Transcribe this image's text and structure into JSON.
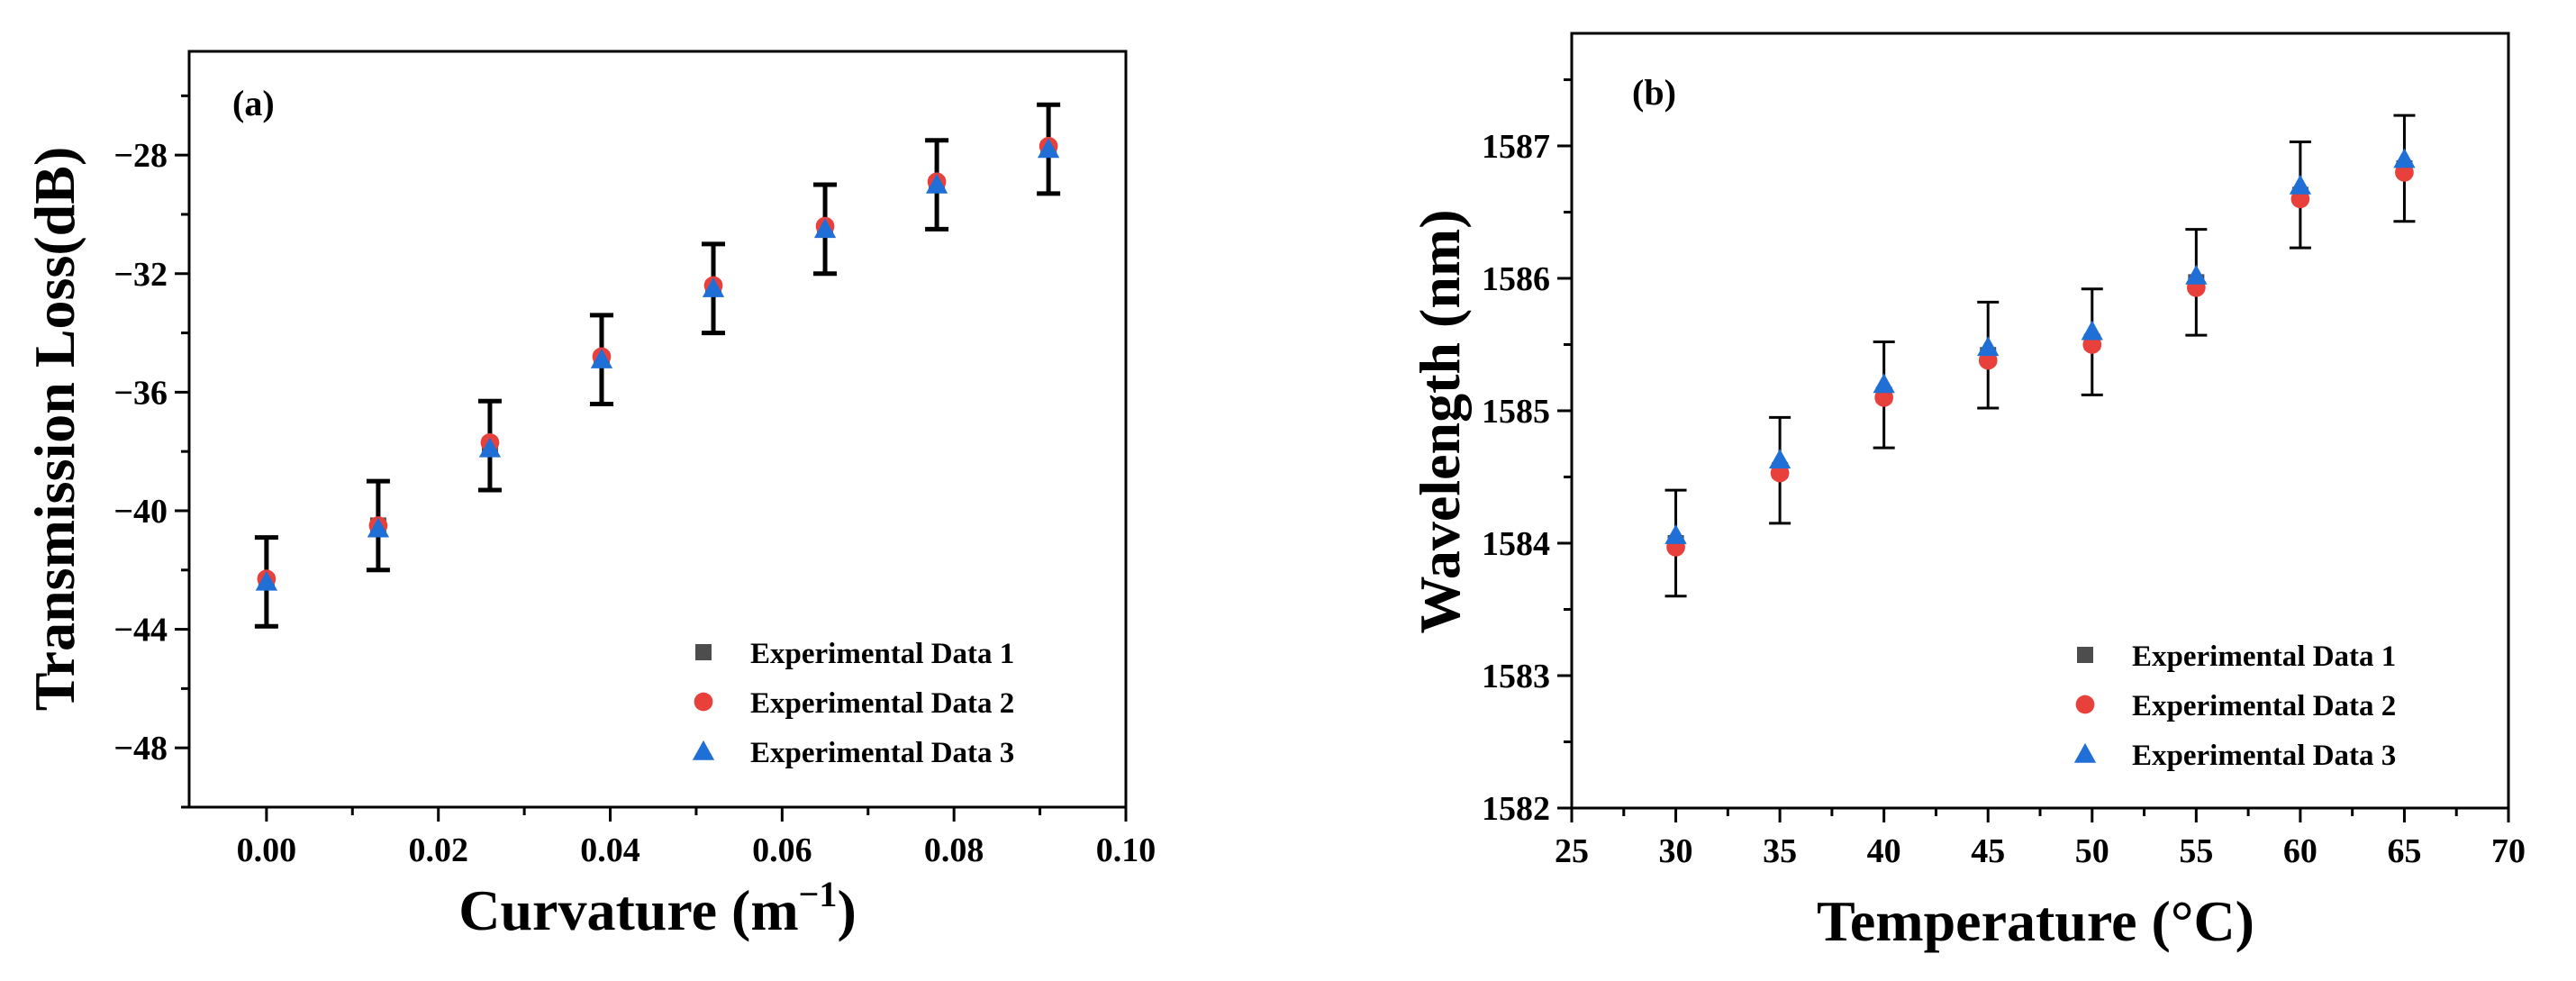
{
  "chart_data": [
    {
      "type": "scatter",
      "panel_label": "(a)",
      "xlabel_main": "Curvature (m",
      "xlabel_sup": "−1",
      "xlabel_close": ")",
      "ylabel": "Transmission Loss(dB)",
      "xlim": [
        -0.009,
        0.1
      ],
      "ylim": [
        -50,
        -24.5
      ],
      "xticks": [
        0.0,
        0.02,
        0.04,
        0.06,
        0.08,
        0.1
      ],
      "xtick_labels": [
        "0.00",
        "0.02",
        "0.04",
        "0.06",
        "0.08",
        "0.10"
      ],
      "yticks": [
        -48,
        -44,
        -40,
        -36,
        -32,
        -28
      ],
      "ytick_labels": [
        "−48",
        "−44",
        "−40",
        "−36",
        "−32",
        "−28"
      ],
      "x": [
        0.0,
        0.013,
        0.026,
        0.039,
        0.052,
        0.065,
        0.078,
        0.091
      ],
      "errors": [
        1.5,
        1.5,
        1.5,
        1.5,
        1.5,
        1.5,
        1.5,
        1.5
      ],
      "series": [
        {
          "name": "Experimental Data 1",
          "marker": "square",
          "color": "#4d4d4d",
          "values": [
            -42.4,
            -40.5,
            -37.8,
            -34.9,
            -32.5,
            -30.5,
            -29.0,
            -27.8
          ]
        },
        {
          "name": "Experimental Data 2",
          "marker": "circle",
          "color": "#e8413c",
          "values": [
            -42.3,
            -40.5,
            -37.7,
            -34.8,
            -32.4,
            -30.4,
            -28.9,
            -27.7
          ]
        },
        {
          "name": "Experimental Data 3",
          "marker": "triangle",
          "color": "#1f6fd6",
          "values": [
            -42.4,
            -40.6,
            -37.9,
            -34.9,
            -32.5,
            -30.5,
            -29.0,
            -27.8
          ]
        }
      ],
      "legend_position": "bottom-right"
    },
    {
      "type": "scatter",
      "panel_label": "(b)",
      "xlabel": "Temperature (°C)",
      "ylabel": "Wavelength (nm)",
      "xlim": [
        25,
        70
      ],
      "ylim": [
        1582,
        1587.85
      ],
      "xticks": [
        25,
        30,
        35,
        40,
        45,
        50,
        55,
        60,
        65,
        70
      ],
      "xtick_labels": [
        "25",
        "30",
        "35",
        "40",
        "45",
        "50",
        "55",
        "60",
        "65",
        "70"
      ],
      "yticks": [
        1582,
        1583,
        1584,
        1585,
        1586,
        1587
      ],
      "ytick_labels": [
        "1582",
        "1583",
        "1584",
        "1585",
        "1586",
        "1587"
      ],
      "x": [
        30,
        35,
        40,
        45,
        50,
        55,
        60,
        65
      ],
      "errors": [
        0.4,
        0.4,
        0.4,
        0.4,
        0.4,
        0.4,
        0.4,
        0.4
      ],
      "series": [
        {
          "name": "Experimental Data 1",
          "marker": "square",
          "color": "#4d4d4d",
          "values": [
            1584.0,
            1584.55,
            1585.12,
            1585.42,
            1585.52,
            1585.97,
            1586.63,
            1586.83
          ]
        },
        {
          "name": "Experimental Data 2",
          "marker": "circle",
          "color": "#e8413c",
          "values": [
            1583.97,
            1584.53,
            1585.1,
            1585.38,
            1585.5,
            1585.93,
            1586.6,
            1586.8
          ]
        },
        {
          "name": "Experimental Data 3",
          "marker": "triangle",
          "color": "#1f6fd6",
          "values": [
            1584.06,
            1584.63,
            1585.2,
            1585.48,
            1585.6,
            1586.02,
            1586.7,
            1586.9
          ]
        }
      ],
      "legend_position": "bottom-right"
    }
  ]
}
